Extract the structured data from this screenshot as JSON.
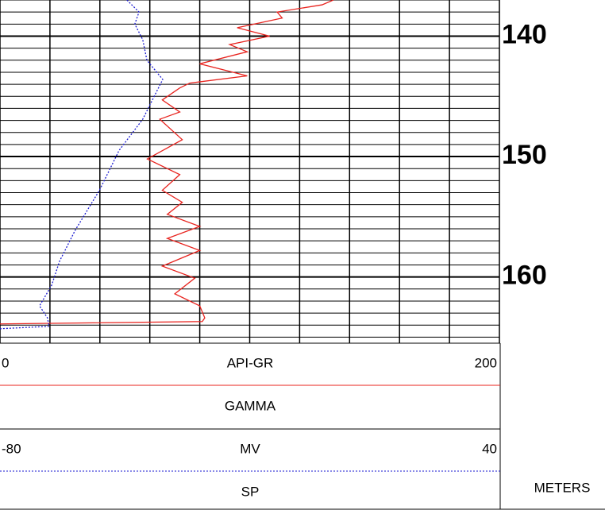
{
  "chart_data": {
    "type": "well-log",
    "depth_label": "METERS",
    "ylim": [
      137,
      165.5
    ],
    "yticks": [
      140,
      150,
      160
    ],
    "minor_yticks": [
      137,
      138,
      139,
      140,
      141,
      142,
      143,
      144,
      145,
      146,
      147,
      148,
      149,
      150,
      151,
      152,
      153,
      154,
      155,
      156,
      157,
      158,
      159,
      160,
      161,
      162,
      163,
      164,
      165
    ],
    "series": [
      {
        "name": "GAMMA",
        "unit": "API-GR",
        "color": "#e8231e",
        "dash": "none",
        "xlim": [
          0,
          200
        ],
        "xticks": [
          0,
          20,
          40,
          60,
          80,
          100,
          120,
          140,
          160,
          180,
          200
        ],
        "depth": [
          137.0,
          137.4,
          138.0,
          138.5,
          139.3,
          140.0,
          140.7,
          141.3,
          142.3,
          143.3,
          143.9,
          144.3,
          145.3,
          146.3,
          146.9,
          148.6,
          150.2,
          151.5,
          152.8,
          153.8,
          154.8,
          155.8,
          156.8,
          157.8,
          159.1,
          160.1,
          161.4,
          162.4,
          163.4,
          163.7,
          163.9
        ],
        "values": [
          133.5,
          129,
          111,
          113,
          95,
          108,
          92,
          99,
          80,
          99,
          76,
          72,
          65,
          72,
          64,
          73,
          59,
          72,
          65,
          73,
          67,
          80,
          67,
          80,
          65,
          78,
          70,
          80,
          82,
          81,
          0
        ]
      },
      {
        "name": "SP",
        "unit": "MV",
        "color": "#1a1ad0",
        "dash": "2 2",
        "xlim": [
          -80,
          40
        ],
        "depth": [
          137.0,
          138.0,
          139.0,
          140.3,
          142.0,
          143.6,
          144.9,
          146.9,
          149.5,
          152.8,
          156.1,
          158.7,
          160.7,
          162.4,
          163.4,
          164.1,
          164.3
        ],
        "values": [
          -49.5,
          -46.6,
          -47.6,
          -45.7,
          -44.7,
          -40.9,
          -42.8,
          -45.7,
          -51.4,
          -56.1,
          -61.9,
          -65.7,
          -67.6,
          -70.5,
          -68.6,
          -68.2,
          -80
        ]
      }
    ]
  }
}
